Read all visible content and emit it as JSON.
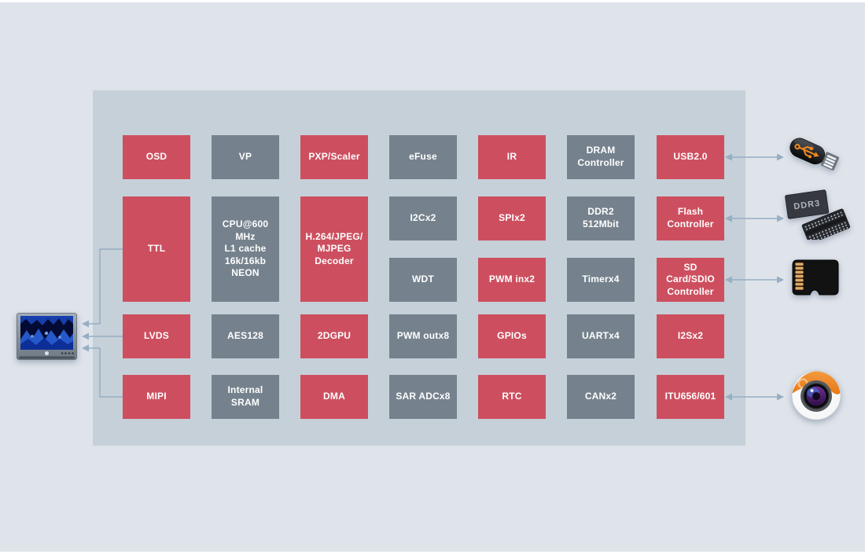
{
  "diagram": {
    "type": "soc-block-diagram",
    "title": ""
  },
  "colors": {
    "background": "#dfe4eb",
    "panel": "#c6d0d9",
    "red_block": "#cd4f5f",
    "gray_block": "#75828d",
    "block_text": "#ffffff",
    "connector": "#96aec3",
    "accent_orange": "#ef8324"
  },
  "blocks": [
    {
      "id": "osd",
      "label": "OSD",
      "color": "red",
      "col": 1,
      "row": 1
    },
    {
      "id": "vp",
      "label": "VP",
      "color": "gray",
      "col": 2,
      "row": 1
    },
    {
      "id": "pxp-scaler",
      "label": "PXP/Scaler",
      "color": "red",
      "col": 3,
      "row": 1
    },
    {
      "id": "efuse",
      "label": "eFuse",
      "color": "gray",
      "col": 4,
      "row": 1
    },
    {
      "id": "ir",
      "label": "IR",
      "color": "red",
      "col": 5,
      "row": 1
    },
    {
      "id": "dram-controller",
      "label": "DRAM\nController",
      "color": "gray",
      "col": 6,
      "row": 1
    },
    {
      "id": "usb2",
      "label": "USB2.0",
      "color": "red",
      "col": 7,
      "row": 1
    },
    {
      "id": "ttl",
      "label": "TTL",
      "color": "red",
      "col": 1,
      "row": 2,
      "tall": true
    },
    {
      "id": "cpu",
      "label": "CPU@600\nMHz\nL1 cache\n16k/16kb\nNEON",
      "color": "gray",
      "col": 2,
      "row": 2,
      "tall": true
    },
    {
      "id": "h264-decoder",
      "label": "H.264/JPEG/\nMJPEG\nDecoder",
      "color": "red",
      "col": 3,
      "row": 2,
      "tall": true
    },
    {
      "id": "i2c",
      "label": "I2Cx2",
      "color": "gray",
      "col": 4,
      "row": 2
    },
    {
      "id": "spi",
      "label": "SPIx2",
      "color": "red",
      "col": 5,
      "row": 2
    },
    {
      "id": "ddr2",
      "label": "DDR2\n512Mbit",
      "color": "gray",
      "col": 6,
      "row": 2
    },
    {
      "id": "flash-controller",
      "label": "Flash\nController",
      "color": "red",
      "col": 7,
      "row": 2
    },
    {
      "id": "wdt",
      "label": "WDT",
      "color": "gray",
      "col": 4,
      "row": 3
    },
    {
      "id": "pwm-in",
      "label": "PWM inx2",
      "color": "red",
      "col": 5,
      "row": 3
    },
    {
      "id": "timer",
      "label": "Timerx4",
      "color": "gray",
      "col": 6,
      "row": 3
    },
    {
      "id": "sd-sdio-controller",
      "label": "SD\nCard/SDIO\nController",
      "color": "red",
      "col": 7,
      "row": 3
    },
    {
      "id": "lvds",
      "label": "LVDS",
      "color": "red",
      "col": 1,
      "row": 4
    },
    {
      "id": "aes128",
      "label": "AES128",
      "color": "gray",
      "col": 2,
      "row": 4
    },
    {
      "id": "2dgpu",
      "label": "2DGPU",
      "color": "red",
      "col": 3,
      "row": 4
    },
    {
      "id": "pwm-out",
      "label": "PWM outx8",
      "color": "gray",
      "col": 4,
      "row": 4
    },
    {
      "id": "gpios",
      "label": "GPIOs",
      "color": "red",
      "col": 5,
      "row": 4
    },
    {
      "id": "uart",
      "label": "UARTx4",
      "color": "gray",
      "col": 6,
      "row": 4
    },
    {
      "id": "i2s",
      "label": "I2Sx2",
      "color": "red",
      "col": 7,
      "row": 4
    },
    {
      "id": "mipi",
      "label": "MIPI",
      "color": "red",
      "col": 1,
      "row": 5
    },
    {
      "id": "internal-sram",
      "label": "Internal\nSRAM",
      "color": "gray",
      "col": 2,
      "row": 5
    },
    {
      "id": "dma",
      "label": "DMA",
      "color": "red",
      "col": 3,
      "row": 5
    },
    {
      "id": "sar-adc",
      "label": "SAR ADCx8",
      "color": "gray",
      "col": 4,
      "row": 5
    },
    {
      "id": "rtc",
      "label": "RTC",
      "color": "red",
      "col": 5,
      "row": 5
    },
    {
      "id": "can",
      "label": "CANx2",
      "color": "gray",
      "col": 6,
      "row": 5
    },
    {
      "id": "itu656-601",
      "label": "ITU656/601",
      "color": "red",
      "col": 7,
      "row": 5
    }
  ],
  "peripherals": [
    {
      "id": "display-monitor",
      "icon": "monitor-icon",
      "label": ""
    },
    {
      "id": "usb-flash-drive",
      "icon": "usb-flash-drive-icon",
      "label": ""
    },
    {
      "id": "ddr3-memory",
      "icon": "ddr3-chip-icon",
      "label": "DDR3"
    },
    {
      "id": "micro-sd-card",
      "icon": "micro-sd-card-icon",
      "label": ""
    },
    {
      "id": "camera",
      "icon": "camera-icon",
      "label": ""
    }
  ],
  "connections": [
    {
      "from": "ttl",
      "to": "display-monitor",
      "direction": "one-way"
    },
    {
      "from": "lvds",
      "to": "display-monitor",
      "direction": "one-way"
    },
    {
      "from": "mipi",
      "to": "display-monitor",
      "direction": "one-way"
    },
    {
      "from": "usb2",
      "to": "usb-flash-drive",
      "direction": "two-way"
    },
    {
      "from": "flash-controller",
      "to": "ddr3-memory",
      "direction": "two-way"
    },
    {
      "from": "sd-sdio-controller",
      "to": "micro-sd-card",
      "direction": "two-way"
    },
    {
      "from": "itu656-601",
      "to": "camera",
      "direction": "two-way"
    }
  ]
}
